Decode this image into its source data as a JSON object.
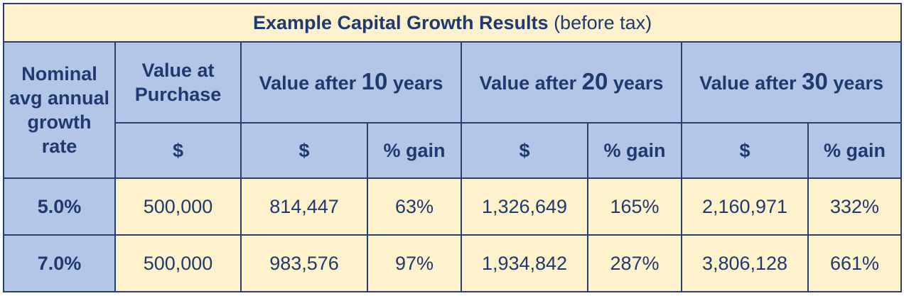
{
  "title": {
    "bold": "Example Capital Growth Results",
    "normal": "(before tax)"
  },
  "headers": {
    "rate": [
      "Nominal",
      "avg annual",
      "growth",
      "rate"
    ],
    "purchase": [
      "Value at",
      "Purchase"
    ],
    "period_prefix": "Value after",
    "period_suffix": "years",
    "periods": [
      "10",
      "20",
      "30"
    ],
    "dollar": "$",
    "gain": "% gain"
  },
  "rows": [
    {
      "rate": "5.0%",
      "purchase": "500,000",
      "v10": "814,447",
      "g10": "63%",
      "v20": "1,326,649",
      "g20": "165%",
      "v30": "2,160,971",
      "g30": "332%"
    },
    {
      "rate": "7.0%",
      "purchase": "500,000",
      "v10": "983,576",
      "g10": "97%",
      "v20": "1,934,842",
      "g20": "287%",
      "v30": "3,806,128",
      "g30": "661%"
    }
  ]
}
